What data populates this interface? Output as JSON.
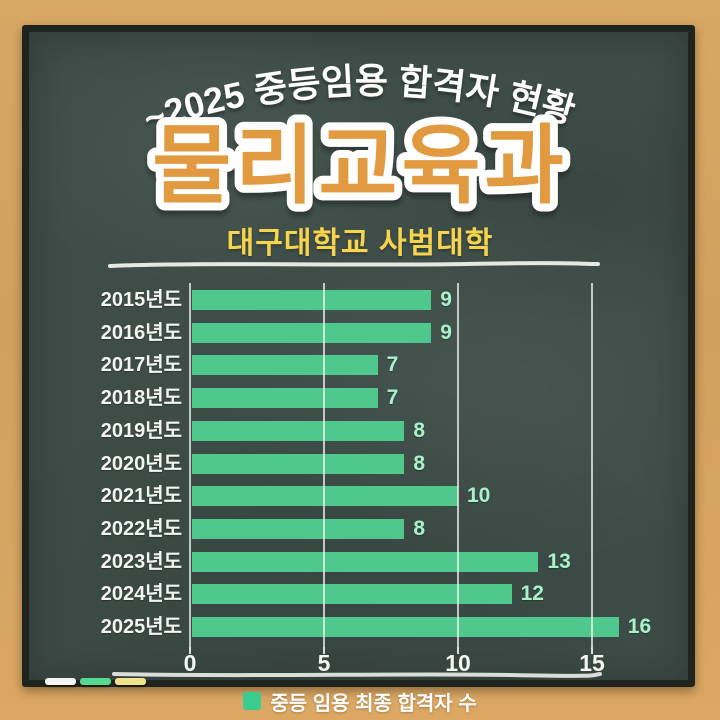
{
  "header": {
    "arch_title": "~2025 중등임용 합격자 현황",
    "main_title": "물리교육과",
    "subtitle": "대구대학교 사범대학"
  },
  "chart_data": {
    "type": "bar",
    "orientation": "horizontal",
    "categories": [
      "2015년도",
      "2016년도",
      "2017년도",
      "2018년도",
      "2019년도",
      "2020년도",
      "2021년도",
      "2022년도",
      "2023년도",
      "2024년도",
      "2025년도"
    ],
    "values": [
      9,
      9,
      7,
      7,
      8,
      8,
      10,
      8,
      13,
      12,
      16
    ],
    "series": [
      {
        "name": "중등 임용 최종 합격자 수",
        "values": [
          9,
          9,
          7,
          7,
          8,
          8,
          10,
          8,
          13,
          12,
          16
        ]
      }
    ],
    "xlabel": "",
    "ylabel": "",
    "xlim": [
      0,
      17
    ],
    "xticks": [
      0,
      5,
      10,
      15
    ],
    "grid": true,
    "legend_position": "bottom",
    "bar_color": "#4ec88d",
    "value_label_color": "#aaf0cc"
  },
  "legend": {
    "swatch_color": "#3ccb8e",
    "label": "중등 임용 최종 합격자 수"
  },
  "decor": {
    "chalk_piece_colors": [
      "#f4f4f0",
      "#55d890",
      "#efe48c"
    ]
  },
  "colors": {
    "frame": "#d5a462",
    "board": "#3e4d48",
    "board_edge": "#20241f",
    "title_fill": "#e29a3f",
    "title_outline": "#ffffff",
    "subtitle": "#f7d44e",
    "text": "#f3f5f1"
  }
}
